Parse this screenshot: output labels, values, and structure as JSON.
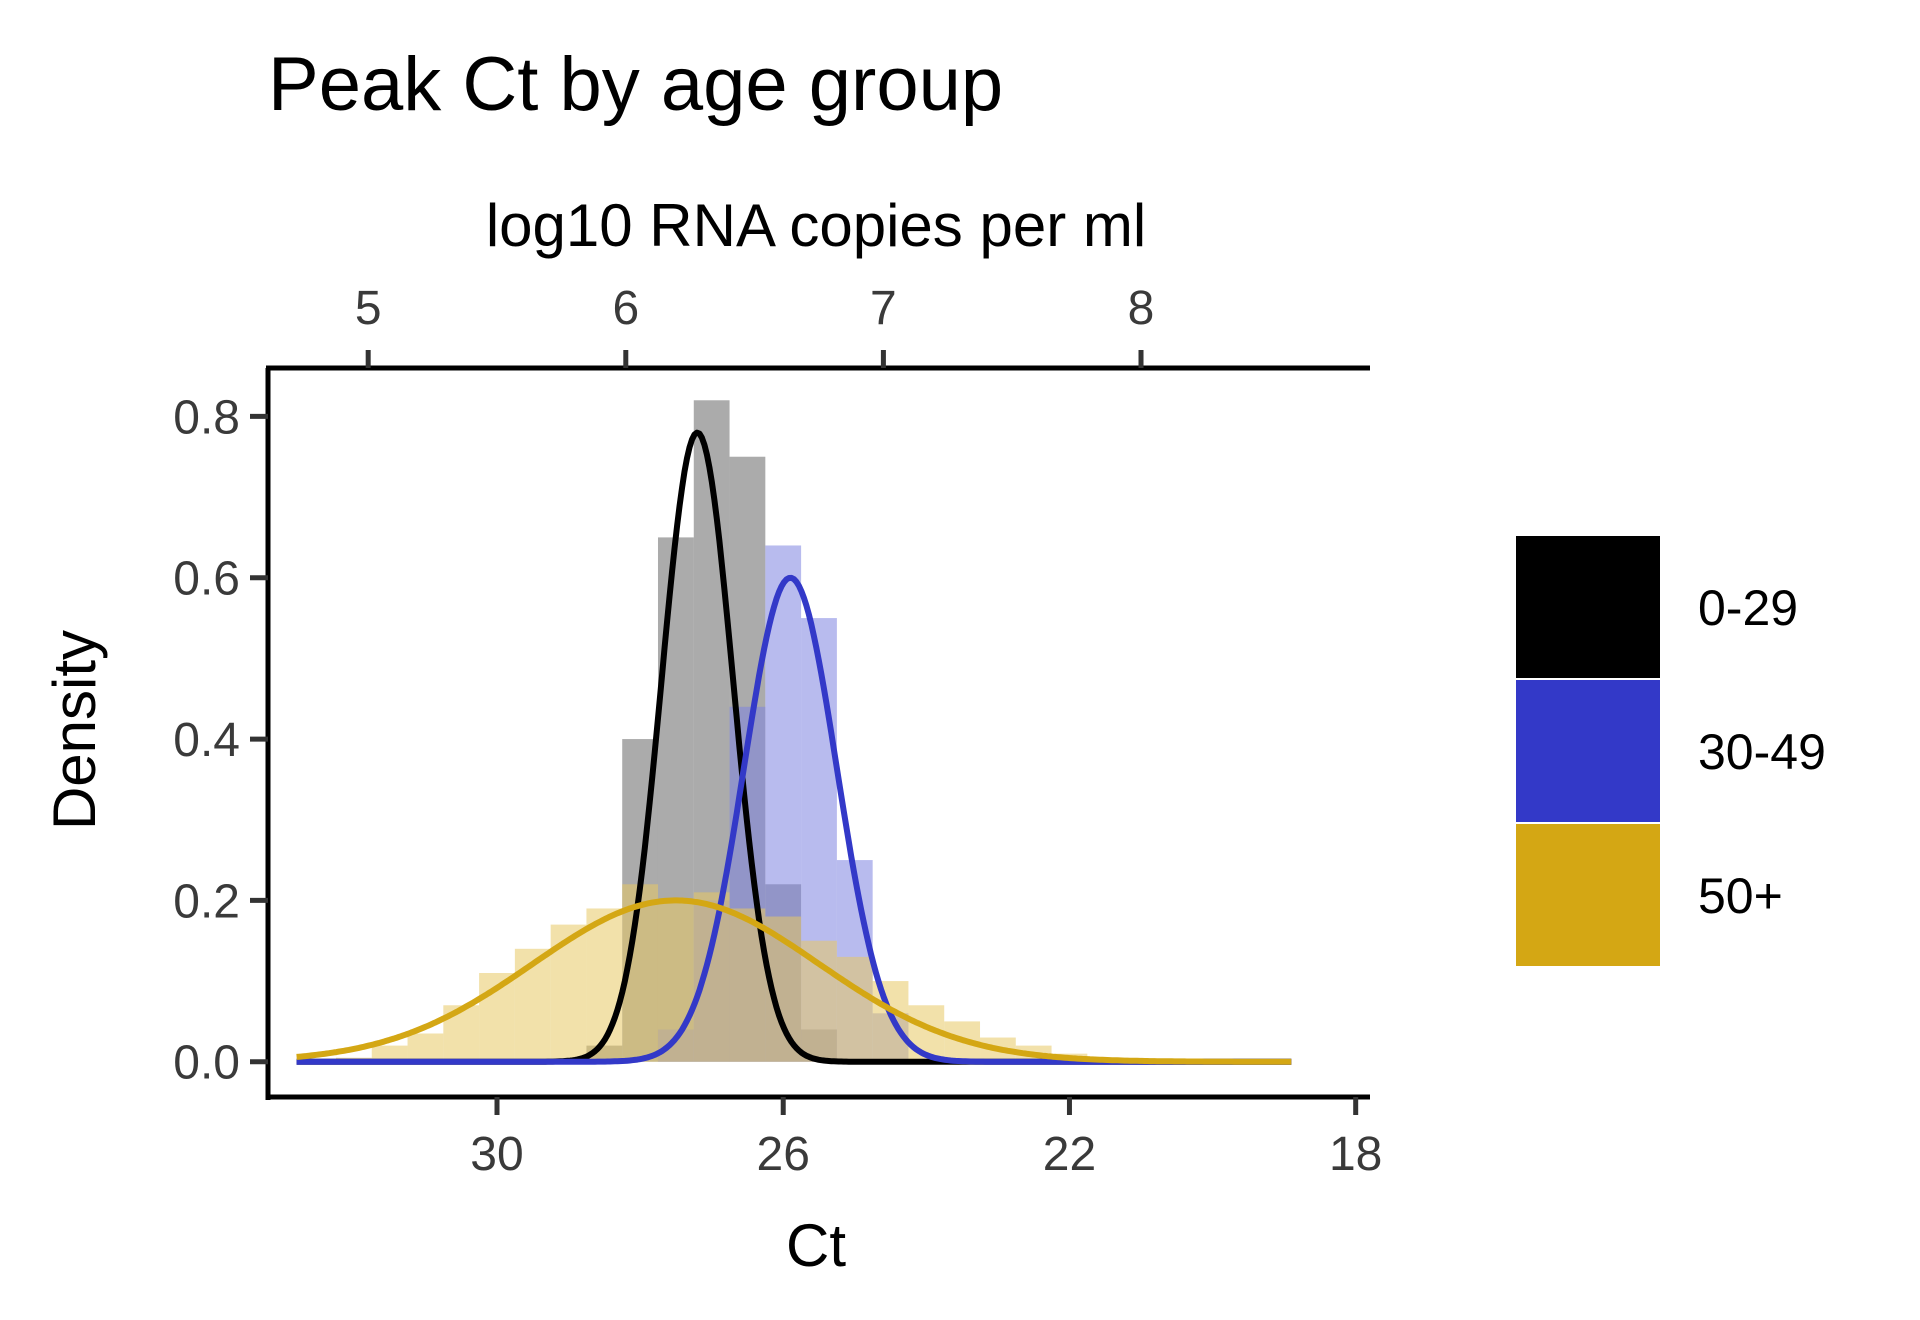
{
  "chart_data": {
    "type": "histogram-density",
    "title": "Peak Ct by age group",
    "xlabel": "Ct",
    "ylabel": "Density",
    "secondary_xlabel": "log10 RNA copies per ml",
    "x_reversed": true,
    "xlim": [
      33.2,
      17.8
    ],
    "ylim": [
      -0.04,
      0.86
    ],
    "x_ticks": [
      30,
      26,
      22,
      18
    ],
    "x_tick_labels": [
      "30",
      "26",
      "22",
      "18"
    ],
    "y_ticks": [
      0,
      0.2,
      0.4,
      0.6,
      0.8
    ],
    "y_tick_labels": [
      "0.0",
      "0.2",
      "0.4",
      "0.6",
      "0.8"
    ],
    "secondary_x_ticks": [
      {
        "label": "5",
        "ct": 31.8
      },
      {
        "label": "6",
        "ct": 28.2
      },
      {
        "label": "7",
        "ct": 24.6
      },
      {
        "label": "8",
        "ct": 21.0
      }
    ],
    "bin_width": 0.5,
    "grid": false,
    "legend_position": "right",
    "series": [
      {
        "name": "0-29",
        "color": "#000000",
        "fill_color": "#666666",
        "density_curve": {
          "mean": 27.2,
          "sd": 0.5,
          "peak": 0.78
        },
        "histogram": [
          [
            28.5,
            0.02
          ],
          [
            28.0,
            0.4
          ],
          [
            27.5,
            0.65
          ],
          [
            27.0,
            0.82
          ],
          [
            26.5,
            0.75
          ],
          [
            26.0,
            0.22
          ],
          [
            25.5,
            0.04
          ]
        ]
      },
      {
        "name": "30-49",
        "color": "#3339c8",
        "fill_color": "#7d83e0",
        "density_curve": {
          "mean": 25.9,
          "sd": 0.65,
          "peak": 0.6
        },
        "histogram": [
          [
            27.5,
            0.04
          ],
          [
            27.0,
            0.2
          ],
          [
            26.5,
            0.44
          ],
          [
            26.0,
            0.64
          ],
          [
            25.5,
            0.55
          ],
          [
            25.0,
            0.25
          ],
          [
            24.5,
            0.06
          ]
        ]
      },
      {
        "name": "50+",
        "color": "#d4a714",
        "fill_color": "#e8c864",
        "density_curve": {
          "mean": 27.5,
          "sd": 2.0,
          "peak": 0.2
        },
        "histogram": [
          [
            32.0,
            0.005
          ],
          [
            31.5,
            0.02
          ],
          [
            31.0,
            0.035
          ],
          [
            30.5,
            0.07
          ],
          [
            30.0,
            0.11
          ],
          [
            29.5,
            0.14
          ],
          [
            29.0,
            0.17
          ],
          [
            28.5,
            0.19
          ],
          [
            28.0,
            0.22
          ],
          [
            27.5,
            0.2
          ],
          [
            27.0,
            0.21
          ],
          [
            26.5,
            0.19
          ],
          [
            26.0,
            0.18
          ],
          [
            25.5,
            0.15
          ],
          [
            25.0,
            0.13
          ],
          [
            24.5,
            0.1
          ],
          [
            24.0,
            0.07
          ],
          [
            23.5,
            0.05
          ],
          [
            23.0,
            0.03
          ],
          [
            22.5,
            0.02
          ],
          [
            22.0,
            0.01
          ],
          [
            21.5,
            0.005
          ],
          [
            21.0,
            0.003
          ],
          [
            20.0,
            0.001
          ]
        ]
      }
    ]
  }
}
